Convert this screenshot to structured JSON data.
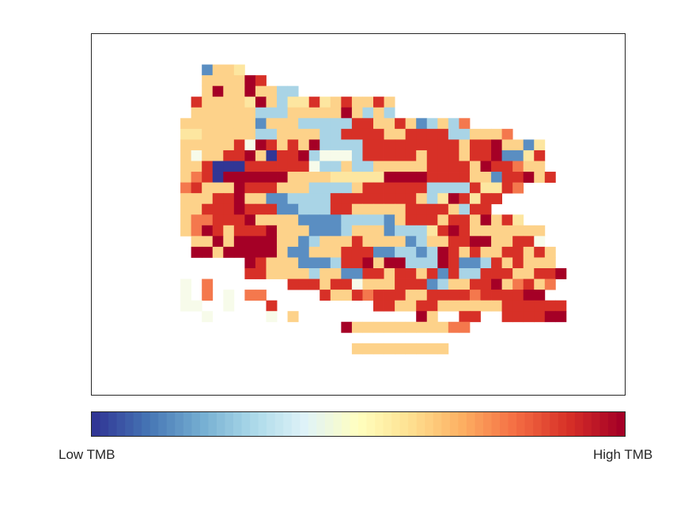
{
  "chart_data": {
    "type": "heatmap",
    "title": "",
    "xlabel": "",
    "ylabel": "",
    "axes_visible": false,
    "grid": false,
    "value_scale": "levels 1 (low) to 9 (high), 0 = no cell",
    "palette": [
      "#313695",
      "#4575b4",
      "#74add1",
      "#abd9e9",
      "#e0f3f8",
      "#ffffbf",
      "#fee090",
      "#fdae61",
      "#f46d43",
      "#d73027",
      "#a50026"
    ],
    "levels": {
      "1": "#313695",
      "2": "#5a8ec2",
      "3": "#a9d4e6",
      "4": "#f7fbea",
      "5": "#fde6a0",
      "6": "#fdd28a",
      "7": "#f4784d",
      "8": "#d73027",
      "9": "#a50026"
    },
    "grid_rows": [
      ".....................................................",
      "....2665....................................",
      "....666698....................................",
      "....696696633.....................................",
      "...8666659635585686686.....................................",
      "...6666663336666696363.....................................",
      "..666666626663333388668623637",
      "..5566666336666338888668888336667.......",
      "..6666684986869333388888888868896625.....",
      "..6466889618893444388888688868892258.....",
      "..6681118888884336336666688886988766......",
      "..67819999996666555559999888866288968....",
      "..78666988866633336888888333385587....",
      "..666889662233338888888863598588.....",
      "..66888988822333886666688886388.....",
      "..67788896666222233332688868869685",
      "..6798688896662223666233358986666666..",
      "...669699996623666866662366889966884",
      "...9969999962266688822332398686688686",
      "........98666222388969933398223868666",
      "........886666366228868868283388866889",
      "..4.7.......8886884666888236688967867..",
      "..4.7.4.77.....866878886688887888899",
      "..44..4...8.........886688666666888888.......",
      "....4.....4.6...........96..88..888899....",
      ".................966666666677.........",
      "......................................",
      "..................666666666."
    ],
    "colorbar": {
      "min_label": "Low TMB",
      "max_label": "High TMB"
    }
  }
}
